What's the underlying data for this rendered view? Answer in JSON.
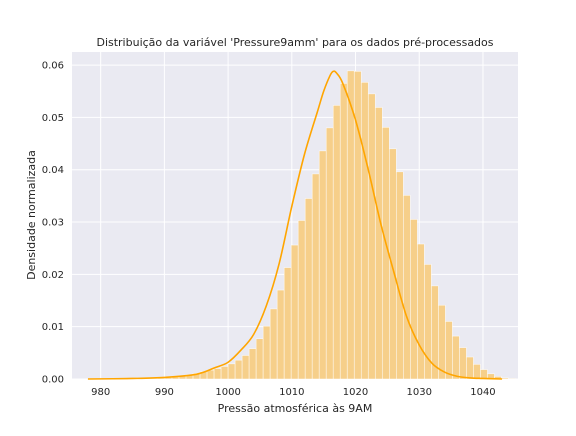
{
  "chart_data": {
    "type": "histogram",
    "title": "Distribuição da variável 'Pressure9amm' para os dados pré-processados",
    "xlabel": "Pressão atmosférica às 9AM",
    "ylabel": "Densidade normalizada",
    "xlim": [
      975.5,
      1045.5
    ],
    "ylim": [
      0,
      0.0625
    ],
    "xticks": [
      980,
      990,
      1000,
      1010,
      1020,
      1030,
      1040
    ],
    "yticks": [
      0.0,
      0.01,
      0.02,
      0.03,
      0.04,
      0.05,
      0.06
    ],
    "xtick_labels": [
      "980",
      "990",
      "1000",
      "1010",
      "1020",
      "1030",
      "1040"
    ],
    "ytick_labels": [
      "0.00",
      "0.01",
      "0.02",
      "0.03",
      "0.04",
      "0.05",
      "0.06"
    ],
    "grid": true,
    "bin_width": 1.1,
    "bins_start": 978.0,
    "bin_values": [
      0.0,
      0.0,
      0.0,
      0.0,
      0.0,
      0.0,
      0.0,
      0.0,
      0.0001,
      0.0001,
      0.0002,
      0.0003,
      0.0004,
      0.0006,
      0.0008,
      0.0011,
      0.0014,
      0.0017,
      0.002,
      0.0024,
      0.0029,
      0.0036,
      0.0045,
      0.0058,
      0.0077,
      0.0101,
      0.0134,
      0.017,
      0.0213,
      0.0256,
      0.0303,
      0.0345,
      0.0392,
      0.0436,
      0.048,
      0.0523,
      0.0565,
      0.0589,
      0.0588,
      0.0567,
      0.0545,
      0.0519,
      0.0481,
      0.044,
      0.0396,
      0.0351,
      0.0305,
      0.0258,
      0.0219,
      0.0178,
      0.0141,
      0.011,
      0.0082,
      0.006,
      0.0042,
      0.0028,
      0.0018,
      0.001,
      0.0005,
      0.0002,
      0.0001
    ],
    "kde": {
      "x": [
        978,
        985,
        990,
        995,
        998,
        1000,
        1002,
        1004,
        1006,
        1008,
        1010,
        1012,
        1014,
        1015,
        1016,
        1016.5,
        1017,
        1018,
        1020,
        1022,
        1024,
        1026,
        1028,
        1030,
        1032,
        1034,
        1036,
        1038,
        1040,
        1043
      ],
      "y": [
        0.0,
        0.0001,
        0.0003,
        0.0009,
        0.0022,
        0.0032,
        0.0055,
        0.0085,
        0.014,
        0.022,
        0.033,
        0.043,
        0.051,
        0.055,
        0.058,
        0.0588,
        0.0585,
        0.0565,
        0.0495,
        0.04,
        0.0295,
        0.0205,
        0.012,
        0.0065,
        0.003,
        0.0013,
        0.0005,
        0.0002,
        0.0001,
        0.0
      ]
    },
    "colors": {
      "bar": "#f6cf8a",
      "line": "#ffa500",
      "background": "#eaeaf2",
      "grid": "#ffffff"
    }
  }
}
